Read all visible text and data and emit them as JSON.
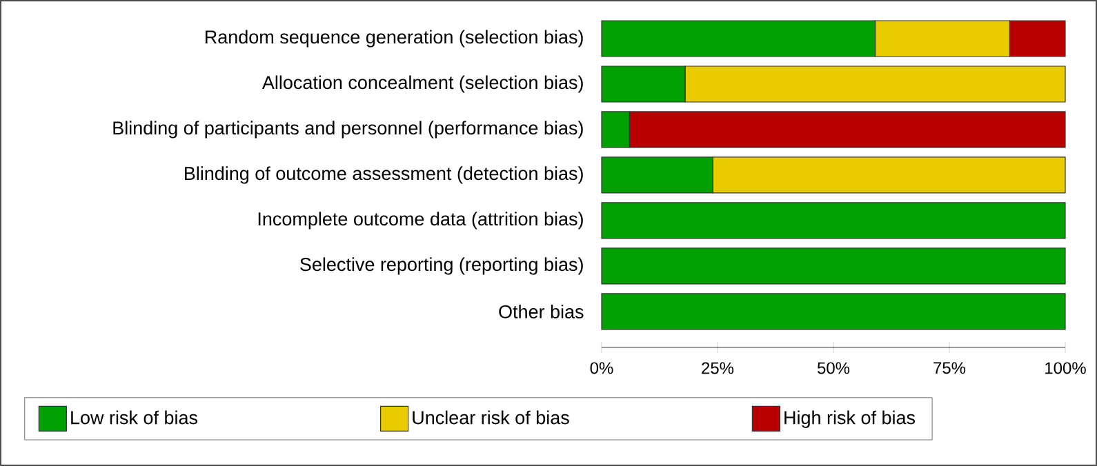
{
  "chart_data": {
    "type": "bar",
    "orientation": "horizontal",
    "stacked": true,
    "categories": [
      "Random sequence generation (selection bias)",
      "Allocation concealment (selection bias)",
      "Blinding of participants and personnel (performance bias)",
      "Blinding of outcome assessment (detection bias)",
      "Incomplete outcome data (attrition bias)",
      "Selective reporting (reporting bias)",
      "Other bias"
    ],
    "series": [
      {
        "name": "Low risk of bias",
        "color": "#00a000",
        "values": [
          59,
          18,
          6,
          24,
          100,
          100,
          100
        ]
      },
      {
        "name": "Unclear risk of bias",
        "color": "#e8cc00",
        "values": [
          29,
          82,
          0,
          76,
          0,
          0,
          0
        ]
      },
      {
        "name": "High risk of bias",
        "color": "#b80000",
        "values": [
          12,
          0,
          94,
          0,
          0,
          0,
          0
        ]
      }
    ],
    "xlim": [
      0,
      100
    ],
    "xticks": [
      {
        "value": 0,
        "label": "0%"
      },
      {
        "value": 25,
        "label": "25%"
      },
      {
        "value": 50,
        "label": "50%"
      },
      {
        "value": 75,
        "label": "75%"
      },
      {
        "value": 100,
        "label": "100%"
      }
    ],
    "legend": "bottom"
  }
}
